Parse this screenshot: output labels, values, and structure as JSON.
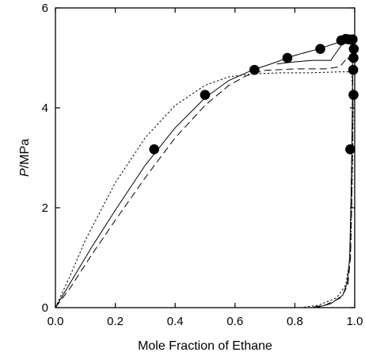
{
  "chart_data": {
    "type": "scatter",
    "title": "",
    "xlabel": "Mole Fraction of Ethane",
    "ylabel_symbol": "P",
    "ylabel_unit": "/MPa",
    "xlim": [
      0.0,
      1.0
    ],
    "ylim": [
      0,
      6
    ],
    "x_ticks": [
      0.0,
      0.2,
      0.4,
      0.6,
      0.8,
      1.0
    ],
    "x_tick_labels": [
      "0.0",
      "0.2",
      "0.4",
      "0.6",
      "0.8",
      "1.0"
    ],
    "y_ticks": [
      0,
      2,
      4,
      6
    ],
    "y_tick_labels": [
      "0",
      "2",
      "4",
      "6"
    ],
    "grid": false,
    "legend": "none",
    "marker_color": "#000000",
    "series": [
      {
        "kind": "points",
        "points": [
          {
            "x": 0.33,
            "y": 3.17
          },
          {
            "x": 0.5,
            "y": 4.26
          },
          {
            "x": 0.665,
            "y": 4.76
          },
          {
            "x": 0.775,
            "y": 5.0
          },
          {
            "x": 0.885,
            "y": 5.18
          },
          {
            "x": 0.955,
            "y": 5.35
          },
          {
            "x": 0.97,
            "y": 5.38
          },
          {
            "x": 0.98,
            "y": 5.37
          },
          {
            "x": 0.993,
            "y": 5.37
          },
          {
            "x": 0.997,
            "y": 5.18
          },
          {
            "x": 0.996,
            "y": 5.0
          },
          {
            "x": 0.995,
            "y": 4.76
          },
          {
            "x": 0.996,
            "y": 4.26
          },
          {
            "x": 0.985,
            "y": 3.17
          }
        ]
      },
      {
        "kind": "solid",
        "bubble": [
          [
            0.0,
            0.0
          ],
          [
            0.05,
            0.5
          ],
          [
            0.12,
            1.2
          ],
          [
            0.2,
            1.95
          ],
          [
            0.3,
            2.85
          ],
          [
            0.4,
            3.6
          ],
          [
            0.5,
            4.2
          ],
          [
            0.58,
            4.55
          ],
          [
            0.66,
            4.76
          ],
          [
            0.72,
            4.88
          ],
          [
            0.8,
            5.05
          ],
          [
            0.88,
            5.18
          ],
          [
            0.94,
            5.3
          ],
          [
            0.97,
            5.38
          ]
        ],
        "dew": [
          [
            0.97,
            5.38
          ],
          [
            0.99,
            5.25
          ],
          [
            0.993,
            4.8
          ],
          [
            0.992,
            4.0
          ],
          [
            0.99,
            3.0
          ],
          [
            0.987,
            2.0
          ],
          [
            0.983,
            1.0
          ],
          [
            0.975,
            0.5
          ],
          [
            0.96,
            0.25
          ],
          [
            0.92,
            0.08
          ],
          [
            0.87,
            0.0
          ]
        ],
        "hook": [
          [
            0.74,
            4.88
          ],
          [
            0.8,
            4.92
          ],
          [
            0.86,
            4.95
          ],
          [
            0.92,
            4.95
          ],
          [
            0.97,
            5.38
          ]
        ]
      },
      {
        "kind": "dashed",
        "bubble": [
          [
            0.0,
            0.0
          ],
          [
            0.05,
            0.4
          ],
          [
            0.12,
            1.05
          ],
          [
            0.2,
            1.75
          ],
          [
            0.3,
            2.6
          ],
          [
            0.4,
            3.4
          ],
          [
            0.5,
            4.05
          ],
          [
            0.58,
            4.45
          ],
          [
            0.64,
            4.65
          ],
          [
            0.7,
            4.75
          ],
          [
            0.8,
            4.78
          ],
          [
            0.9,
            4.78
          ],
          [
            0.95,
            4.82
          ],
          [
            0.975,
            5.0
          ]
        ],
        "dew": [
          [
            0.975,
            5.0
          ],
          [
            0.993,
            4.9
          ],
          [
            0.994,
            4.0
          ],
          [
            0.992,
            3.0
          ],
          [
            0.99,
            2.0
          ],
          [
            0.986,
            1.0
          ],
          [
            0.977,
            0.45
          ],
          [
            0.955,
            0.2
          ],
          [
            0.9,
            0.05
          ],
          [
            0.85,
            0.0
          ]
        ]
      },
      {
        "kind": "dotted",
        "bubble": [
          [
            0.0,
            0.0
          ],
          [
            0.05,
            0.65
          ],
          [
            0.1,
            1.35
          ],
          [
            0.2,
            2.5
          ],
          [
            0.3,
            3.4
          ],
          [
            0.4,
            4.05
          ],
          [
            0.5,
            4.45
          ],
          [
            0.58,
            4.62
          ],
          [
            0.66,
            4.68
          ],
          [
            0.75,
            4.7
          ],
          [
            0.85,
            4.7
          ],
          [
            0.95,
            4.72
          ],
          [
            0.99,
            4.72
          ]
        ],
        "dew": [
          [
            0.99,
            4.72
          ],
          [
            0.995,
            4.0
          ],
          [
            0.993,
            3.0
          ],
          [
            0.99,
            2.0
          ],
          [
            0.985,
            1.0
          ],
          [
            0.97,
            0.45
          ],
          [
            0.94,
            0.2
          ],
          [
            0.88,
            0.05
          ],
          [
            0.82,
            0.0
          ]
        ]
      }
    ]
  }
}
